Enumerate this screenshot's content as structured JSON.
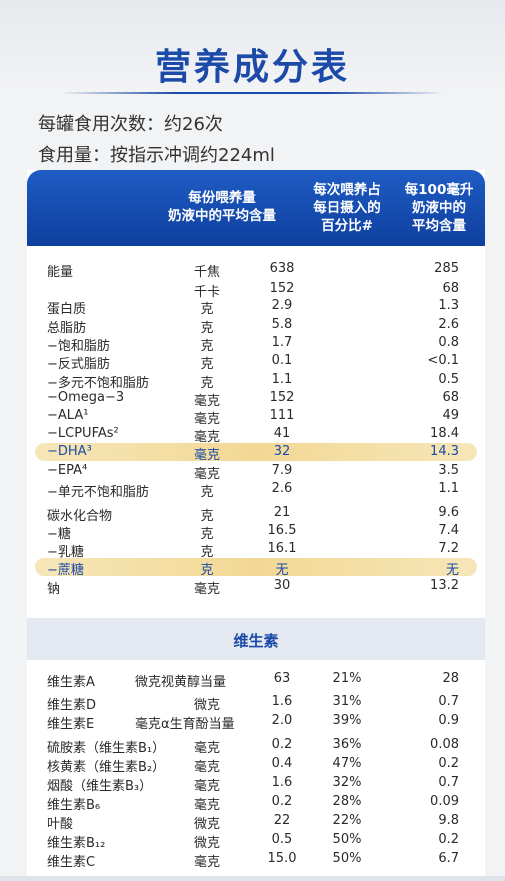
{
  "title": "营养成分表",
  "meta": [
    "每罐食用次数：约26次",
    "食用量：按指示冲调约224ml"
  ],
  "header": {
    "col1": [
      "每份喂养量",
      "奶液中的平均含量"
    ],
    "col2": [
      "每次喂养占",
      "每日摄入的",
      "百分比#"
    ],
    "col3": [
      "每100毫升",
      "奶液中的",
      "平均含量"
    ]
  },
  "rows": [
    {
      "name": "能量",
      "unit": "千焦",
      "per": "638",
      "per100": "285"
    },
    {
      "name": "",
      "unit": "千卡",
      "per": "152",
      "per100": "68"
    },
    {
      "name": "蛋白质",
      "unit": "克",
      "per": "2.9",
      "per100": "1.3"
    },
    {
      "name": "总脂肪",
      "unit": "克",
      "per": "5.8",
      "per100": "2.6"
    },
    {
      "name": "−饱和脂肪",
      "unit": "克",
      "per": "1.7",
      "per100": "0.8"
    },
    {
      "name": "−反式脂肪",
      "unit": "克",
      "per": "0.1",
      "per100": "<0.1"
    },
    {
      "name": "−多元不饱和脂肪",
      "unit": "克",
      "per": "1.1",
      "per100": "0.5"
    },
    {
      "name": "−Omega−3",
      "unit": "毫克",
      "per": "152",
      "per100": "68"
    },
    {
      "name": "−ALA¹",
      "unit": "毫克",
      "per": "111",
      "per100": "49"
    },
    {
      "name": "−LCPUFAs²",
      "unit": "毫克",
      "per": "41",
      "per100": "18.4"
    },
    {
      "name": "−DHA³",
      "unit": "毫克",
      "per": "32",
      "per100": "14.3"
    },
    {
      "name": "−EPA⁴",
      "unit": "毫克",
      "per": "7.9",
      "per100": "3.5"
    },
    {
      "name": "−单元不饱和脂肪",
      "unit": "克",
      "per": "2.6",
      "per100": "1.1"
    },
    {
      "name": "碳水化合物",
      "unit": "克",
      "per": "21",
      "per100": "9.6"
    },
    {
      "name": "−糖",
      "unit": "克",
      "per": "16.5",
      "per100": "7.4"
    },
    {
      "name": "−乳糖",
      "unit": "克",
      "per": "16.1",
      "per100": "7.2"
    },
    {
      "name": "−蔗糖",
      "unit": "克",
      "per": "无",
      "per100": "无"
    },
    {
      "name": "钠",
      "unit": "毫克",
      "per": "30",
      "per100": "13.2"
    }
  ],
  "vitamins_title": "维生素",
  "vitamins": [
    {
      "name": "维生素A",
      "unit": "微克视黄醇当量",
      "per": "63",
      "pct": "21%",
      "per100": "28"
    },
    {
      "name": "维生素D",
      "unit": "微克",
      "per": "1.6",
      "pct": "31%",
      "per100": "0.7"
    },
    {
      "name": "维生素E",
      "unit": "毫克α生育酚当量",
      "per": "2.0",
      "pct": "39%",
      "per100": "0.9"
    },
    {
      "name": "硫胺素（维生素B₁）",
      "unit": "毫克",
      "per": "0.2",
      "pct": "36%",
      "per100": "0.08"
    },
    {
      "name": "核黄素（维生素B₂）",
      "unit": "毫克",
      "per": "0.4",
      "pct": "47%",
      "per100": "0.2"
    },
    {
      "name": "烟酸（维生素B₃）",
      "unit": "毫克",
      "per": "1.6",
      "pct": "32%",
      "per100": "0.7"
    },
    {
      "name": "维生素B₆",
      "unit": "毫克",
      "per": "0.2",
      "pct": "28%",
      "per100": "0.09"
    },
    {
      "name": "叶酸",
      "unit": "微克",
      "per": "22",
      "pct": "22%",
      "per100": "9.8"
    },
    {
      "name": "维生素B₁₂",
      "unit": "微克",
      "per": "0.5",
      "pct": "50%",
      "per100": "0.2"
    },
    {
      "name": "维生素C",
      "unit": "毫克",
      "per": "15.0",
      "pct": "50%",
      "per100": "6.7"
    }
  ]
}
